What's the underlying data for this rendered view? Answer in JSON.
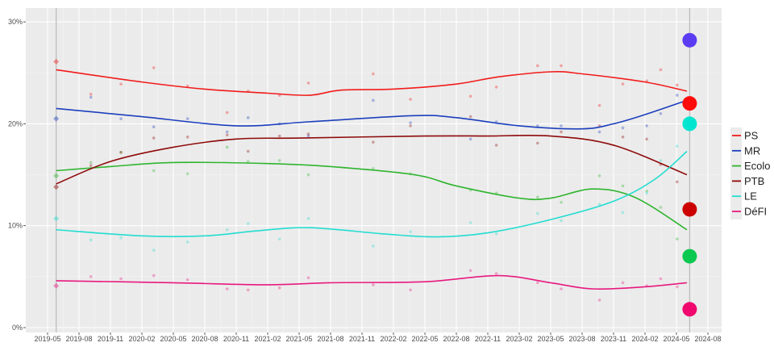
{
  "chart_data": {
    "type": "line",
    "title": "",
    "xlabel": "",
    "ylabel": "",
    "x_axis": {
      "type": "date",
      "range": [
        "2019-03-15",
        "2024-09-10"
      ],
      "tick_labels": [
        "2019-05",
        "2019-08",
        "2019-11",
        "2020-02",
        "2020-05",
        "2020-08",
        "2020-11",
        "2021-02",
        "2021-05",
        "2021-08",
        "2021-11",
        "2022-02",
        "2022-05",
        "2022-08",
        "2022-11",
        "2023-02",
        "2023-05",
        "2023-08",
        "2023-11",
        "2024-02",
        "2024-05",
        "2024-08"
      ]
    },
    "y_axis": {
      "range": [
        0,
        31
      ],
      "tick_values": [
        0,
        10,
        20,
        30
      ],
      "tick_labels": [
        "0%",
        "10%",
        "20%",
        "30%"
      ]
    },
    "grid": true,
    "legend_placement": "right",
    "election_lines": [
      "2019-05-26",
      "2024-06-09"
    ],
    "series": [
      {
        "name": "PS",
        "color": "#f21b1b",
        "trend": [
          [
            "2019-05-26",
            25.3
          ],
          [
            "2020-02-01",
            24.1
          ],
          [
            "2020-08-01",
            23.4
          ],
          [
            "2021-02-01",
            23.0
          ],
          [
            "2021-06-01",
            22.8
          ],
          [
            "2021-09-01",
            23.3
          ],
          [
            "2022-02-01",
            23.4
          ],
          [
            "2022-08-01",
            23.9
          ],
          [
            "2022-12-01",
            24.6
          ],
          [
            "2023-05-01",
            25.1
          ],
          [
            "2023-08-01",
            24.9
          ],
          [
            "2024-02-01",
            24.1
          ],
          [
            "2024-06-01",
            23.2
          ]
        ],
        "election_2019": 26.1,
        "election_2024": 22.0,
        "election_2024_color": "#ff0a0a"
      },
      {
        "name": "MR",
        "color": "#1c3fbd",
        "trend": [
          [
            "2019-05-26",
            21.5
          ],
          [
            "2020-02-01",
            20.7
          ],
          [
            "2020-11-01",
            19.8
          ],
          [
            "2021-06-01",
            20.2
          ],
          [
            "2022-04-01",
            20.8
          ],
          [
            "2022-08-01",
            20.6
          ],
          [
            "2023-02-01",
            19.8
          ],
          [
            "2023-08-01",
            19.5
          ],
          [
            "2023-11-01",
            20.0
          ],
          [
            "2024-02-01",
            20.9
          ],
          [
            "2024-06-01",
            22.3
          ]
        ],
        "election_2019": 20.5,
        "election_2024": 28.2,
        "election_2024_color": "#5b3cf2"
      },
      {
        "name": "Ecolo",
        "color": "#2fb52f",
        "trend": [
          [
            "2019-05-26",
            15.4
          ],
          [
            "2019-11-01",
            15.8
          ],
          [
            "2020-05-01",
            16.2
          ],
          [
            "2021-02-01",
            16.1
          ],
          [
            "2021-08-01",
            15.8
          ],
          [
            "2022-04-01",
            15.0
          ],
          [
            "2022-08-01",
            13.9
          ],
          [
            "2023-02-01",
            12.7
          ],
          [
            "2023-05-01",
            12.7
          ],
          [
            "2023-09-01",
            13.6
          ],
          [
            "2024-01-01",
            12.8
          ],
          [
            "2024-06-01",
            9.6
          ]
        ],
        "election_2019": 14.9,
        "election_2024": 7.0,
        "election_2024_color": "#0ac850"
      },
      {
        "name": "PTB",
        "color": "#8e0a0a",
        "trend": [
          [
            "2019-05-26",
            14.1
          ],
          [
            "2019-11-01",
            16.3
          ],
          [
            "2020-05-01",
            17.7
          ],
          [
            "2020-11-01",
            18.5
          ],
          [
            "2021-05-01",
            18.6
          ],
          [
            "2022-05-01",
            18.8
          ],
          [
            "2022-11-01",
            18.8
          ],
          [
            "2023-05-01",
            18.8
          ],
          [
            "2023-11-01",
            17.9
          ],
          [
            "2024-06-01",
            15.0
          ]
        ],
        "election_2019": 13.8,
        "election_2024": 11.6,
        "election_2024_color": "#cc0000"
      },
      {
        "name": "LE",
        "color": "#22ddd0",
        "trend": [
          [
            "2019-05-26",
            9.6
          ],
          [
            "2020-02-01",
            9.0
          ],
          [
            "2020-08-01",
            9.0
          ],
          [
            "2021-01-01",
            9.5
          ],
          [
            "2021-06-01",
            9.8
          ],
          [
            "2022-01-01",
            9.2
          ],
          [
            "2022-06-01",
            8.9
          ],
          [
            "2022-11-01",
            9.3
          ],
          [
            "2023-05-01",
            10.6
          ],
          [
            "2023-11-01",
            12.4
          ],
          [
            "2024-03-01",
            14.6
          ],
          [
            "2024-06-01",
            17.3
          ]
        ],
        "election_2019": 10.7,
        "election_2024": 20.0,
        "election_2024_color": "#00e5d0"
      },
      {
        "name": "DéFI",
        "color": "#e8197f",
        "trend": [
          [
            "2019-05-26",
            4.6
          ],
          [
            "2020-05-01",
            4.4
          ],
          [
            "2021-02-01",
            4.2
          ],
          [
            "2021-08-01",
            4.4
          ],
          [
            "2022-05-01",
            4.5
          ],
          [
            "2022-12-01",
            5.1
          ],
          [
            "2023-05-01",
            4.4
          ],
          [
            "2023-09-01",
            3.8
          ],
          [
            "2024-02-01",
            4.0
          ],
          [
            "2024-06-01",
            4.4
          ]
        ],
        "election_2019": 4.1,
        "election_2024": 1.8,
        "election_2024_color": "#f0086e"
      }
    ],
    "polls": {
      "order": [
        "PS",
        "MR",
        "Ecolo",
        "PTB",
        "LE",
        "DéFI"
      ],
      "rows": [
        [
          "2019-09-05",
          [
            22.9,
            22.6,
            16.2,
            15.9,
            8.6,
            5.0
          ]
        ],
        [
          "2019-12-01",
          [
            23.9,
            20.5,
            17.2,
            17.2,
            8.8,
            4.8
          ]
        ],
        [
          "2020-03-05",
          [
            25.5,
            19.7,
            15.4,
            18.6,
            7.6,
            5.1
          ]
        ],
        [
          "2020-06-12",
          [
            23.7,
            20.5,
            15.1,
            18.7,
            8.4,
            4.7
          ]
        ],
        [
          "2020-10-05",
          [
            21.1,
            19.2,
            17.7,
            18.9,
            9.6,
            3.8
          ]
        ],
        [
          "2020-12-05",
          [
            23.2,
            20.6,
            16.3,
            17.3,
            10.2,
            3.7
          ]
        ],
        [
          "2021-03-05",
          [
            22.8,
            20.0,
            16.4,
            18.8,
            8.7,
            3.9
          ]
        ],
        [
          "2021-05-28",
          [
            24.0,
            18.8,
            15.0,
            19.0,
            10.7,
            4.9
          ]
        ],
        [
          "2021-12-03",
          [
            24.9,
            22.3,
            15.6,
            18.2,
            8.0,
            4.2
          ]
        ],
        [
          "2022-03-20",
          [
            22.4,
            20.1,
            15.1,
            19.8,
            9.4,
            3.7
          ]
        ],
        [
          "2022-09-12",
          [
            22.7,
            18.5,
            13.5,
            20.7,
            10.3,
            5.6
          ]
        ],
        [
          "2022-11-26",
          [
            23.6,
            20.2,
            13.2,
            17.9,
            9.2,
            5.3
          ]
        ],
        [
          "2023-03-24",
          [
            25.7,
            19.8,
            12.8,
            18.1,
            11.2,
            4.4
          ]
        ],
        [
          "2023-06-01",
          [
            25.7,
            19.8,
            12.3,
            19.2,
            10.5,
            3.8
          ]
        ],
        [
          "2023-09-21",
          [
            21.8,
            19.2,
            14.9,
            19.8,
            12.1,
            2.7
          ]
        ],
        [
          "2023-11-28",
          [
            23.9,
            19.6,
            13.9,
            18.7,
            11.3,
            4.4
          ]
        ],
        [
          "2024-02-06",
          [
            24.2,
            19.8,
            13.4,
            18.5,
            13.2,
            4.1
          ]
        ],
        [
          "2024-03-16",
          [
            25.3,
            21.0,
            11.8,
            16.0,
            16.4,
            4.8
          ]
        ],
        [
          "2024-05-03",
          [
            23.8,
            22.8,
            8.7,
            14.3,
            17.8,
            4.0
          ]
        ]
      ]
    }
  }
}
